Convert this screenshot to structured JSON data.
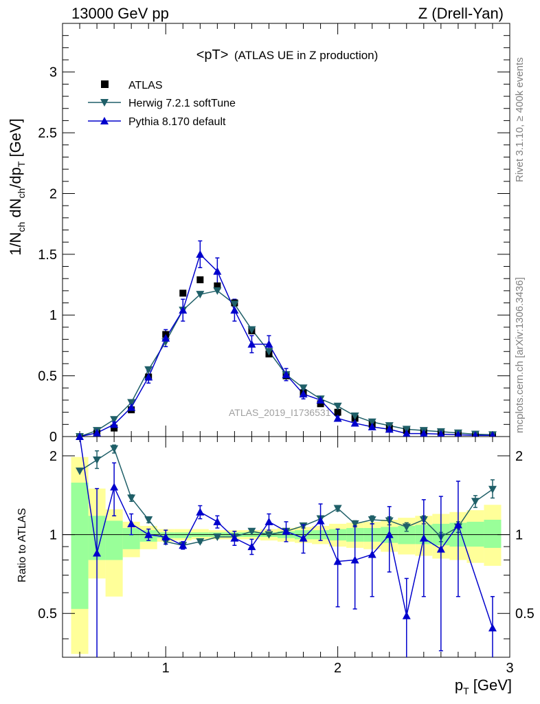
{
  "header": {
    "left": "13000 GeV pp",
    "right": "Z (Drell-Yan)"
  },
  "side_text": {
    "top": "Rivet 3.1.10, ≥ 400k events",
    "bottom": "mcplots.cern.ch [arXiv:1306.3436]"
  },
  "watermark": "ATLAS_2019_I1736531",
  "colors": {
    "atlas": "#000000",
    "herwig": "#1f5f68",
    "pythia": "#0000cc",
    "band_yellow": "#ffff99",
    "band_green": "#99ff99"
  },
  "chart_data": [
    {
      "type": "scatter",
      "title": "<pT> (ATLAS UE in Z production)",
      "title_main": "<pT>",
      "title_sub": "(ATLAS UE in Z production)",
      "ylabel": "1/N_ch dN_ch/dp_T [GeV]",
      "ylabel_parts": {
        "a": "1/N",
        "b": "ch",
        "c": " dN",
        "d": "ch",
        "e": "/dp",
        "f": "T",
        "g": " [GeV]"
      },
      "xlim": [
        0.4,
        3.0
      ],
      "ylim": [
        0,
        3.4
      ],
      "yticks": [
        {
          "v": 0,
          "label": "0"
        },
        {
          "v": 0.5,
          "label": "0.5"
        },
        {
          "v": 1,
          "label": "1"
        },
        {
          "v": 1.5,
          "label": "1.5"
        },
        {
          "v": 2,
          "label": "2"
        },
        {
          "v": 2.5,
          "label": "2.5"
        },
        {
          "v": 3,
          "label": "3"
        }
      ],
      "legend_position": "top-left",
      "x": [
        0.5,
        0.6,
        0.7,
        0.8,
        0.9,
        1.0,
        1.1,
        1.2,
        1.3,
        1.4,
        1.5,
        1.6,
        1.7,
        1.8,
        1.9,
        2.0,
        2.1,
        2.2,
        2.3,
        2.4,
        2.5,
        2.6,
        2.7,
        2.8,
        2.9
      ],
      "series": [
        {
          "name": "ATLAS",
          "marker": "square",
          "values": [
            0.0,
            0.03,
            0.07,
            0.22,
            0.49,
            0.84,
            1.18,
            1.29,
            1.24,
            1.1,
            0.87,
            0.68,
            0.5,
            0.36,
            0.27,
            0.2,
            0.15,
            0.1,
            0.07,
            0.05,
            0.04,
            0.03,
            0.02,
            0.015,
            0.01
          ]
        },
        {
          "name": "Herwig 7.2.1 softTune",
          "marker": "triangle-down",
          "values": [
            0.0,
            0.05,
            0.14,
            0.28,
            0.55,
            0.78,
            1.04,
            1.17,
            1.2,
            1.09,
            0.88,
            0.7,
            0.51,
            0.4,
            0.31,
            0.25,
            0.17,
            0.12,
            0.09,
            0.06,
            0.05,
            0.04,
            0.03,
            0.02,
            0.015
          ],
          "errors": [
            0,
            0,
            0,
            0,
            0,
            0,
            0,
            0,
            0,
            0,
            0,
            0,
            0,
            0,
            0,
            0,
            0,
            0,
            0,
            0,
            0,
            0,
            0,
            0,
            0
          ]
        },
        {
          "name": "Pythia 8.170 default",
          "marker": "triangle-up",
          "values": [
            0.0,
            0.03,
            0.1,
            0.24,
            0.49,
            0.81,
            1.04,
            1.5,
            1.36,
            1.04,
            0.76,
            0.76,
            0.51,
            0.35,
            0.3,
            0.15,
            0.11,
            0.08,
            0.06,
            0.025,
            0.025,
            0.02,
            0.015,
            0.01,
            0.01
          ],
          "errors": [
            0,
            0.01,
            0.02,
            0.03,
            0.05,
            0.07,
            0.09,
            0.11,
            0.11,
            0.09,
            0.07,
            0.07,
            0.05,
            0.04,
            0.03,
            0.02,
            0.02,
            0.015,
            0.01,
            0.01,
            0.01,
            0.01,
            0.01,
            0.005,
            0.005
          ]
        }
      ]
    },
    {
      "type": "scatter",
      "ylabel": "Ratio to ATLAS",
      "xlabel": "p_T [GeV]",
      "xlabel_parts": {
        "a": "p",
        "b": "T",
        "c": " [GeV]"
      },
      "xlim": [
        0.4,
        3.0
      ],
      "ylim": [
        0.34,
        2.37
      ],
      "xticks": [
        {
          "v": 1,
          "label": "1"
        },
        {
          "v": 2,
          "label": "2"
        },
        {
          "v": 3,
          "label": "3"
        }
      ],
      "yticks": [
        {
          "v": 0.5,
          "label": "0.5"
        },
        {
          "v": 1,
          "label": "1"
        },
        {
          "v": 2,
          "label": "2"
        }
      ],
      "bands": {
        "edges": [
          0.45,
          0.55,
          0.65,
          0.75,
          0.85,
          0.95,
          1.05,
          1.15,
          1.25,
          1.35,
          1.45,
          1.55,
          1.65,
          1.75,
          1.85,
          1.95,
          2.05,
          2.15,
          2.25,
          2.35,
          2.45,
          2.55,
          2.65,
          2.75,
          2.85,
          2.95
        ],
        "yellow": [
          [
            0.35,
            1.98
          ],
          [
            0.68,
            1.5
          ],
          [
            0.58,
            1.25
          ],
          [
            0.82,
            1.12
          ],
          [
            0.88,
            1.08
          ],
          [
            0.94,
            1.05
          ],
          [
            0.95,
            1.05
          ],
          [
            0.96,
            1.05
          ],
          [
            0.96,
            1.04
          ],
          [
            0.96,
            1.04
          ],
          [
            0.96,
            1.04
          ],
          [
            0.95,
            1.05
          ],
          [
            0.94,
            1.06
          ],
          [
            0.93,
            1.07
          ],
          [
            0.92,
            1.08
          ],
          [
            0.9,
            1.1
          ],
          [
            0.89,
            1.11
          ],
          [
            0.88,
            1.12
          ],
          [
            0.86,
            1.14
          ],
          [
            0.84,
            1.16
          ],
          [
            0.83,
            1.18
          ],
          [
            0.81,
            1.2
          ],
          [
            0.8,
            1.22
          ],
          [
            0.78,
            1.24
          ],
          [
            0.76,
            1.3
          ]
        ],
        "green": [
          [
            0.52,
            1.58
          ],
          [
            0.8,
            1.18
          ],
          [
            0.8,
            1.13
          ],
          [
            0.88,
            1.06
          ],
          [
            0.94,
            1.04
          ],
          [
            0.97,
            1.02
          ],
          [
            0.97,
            1.02
          ],
          [
            0.98,
            1.02
          ],
          [
            0.98,
            1.02
          ],
          [
            0.98,
            1.02
          ],
          [
            0.98,
            1.02
          ],
          [
            0.98,
            1.02
          ],
          [
            0.97,
            1.03
          ],
          [
            0.96,
            1.04
          ],
          [
            0.96,
            1.04
          ],
          [
            0.95,
            1.05
          ],
          [
            0.94,
            1.06
          ],
          [
            0.94,
            1.06
          ],
          [
            0.93,
            1.07
          ],
          [
            0.92,
            1.08
          ],
          [
            0.92,
            1.09
          ],
          [
            0.91,
            1.1
          ],
          [
            0.9,
            1.11
          ],
          [
            0.9,
            1.12
          ],
          [
            0.89,
            1.14
          ]
        ]
      },
      "x": [
        0.5,
        0.6,
        0.7,
        0.8,
        0.9,
        1.0,
        1.1,
        1.2,
        1.3,
        1.4,
        1.5,
        1.6,
        1.7,
        1.8,
        1.9,
        2.0,
        2.1,
        2.2,
        2.3,
        2.4,
        2.5,
        2.6,
        2.7,
        2.8,
        2.9
      ],
      "series": [
        {
          "name": "Herwig 7.2.1 softTune",
          "marker": "triangle-down",
          "values": [
            1.75,
            1.93,
            2.13,
            1.38,
            1.14,
            0.94,
            0.91,
            0.94,
            0.98,
            0.98,
            1.03,
            1.0,
            1.03,
            1.08,
            1.15,
            1.26,
            1.1,
            1.14,
            1.13,
            1.07,
            1.14,
            0.98,
            1.07,
            1.34,
            1.49
          ],
          "lo": [
            1.75,
            1.79,
            2.05,
            1.34,
            1.11,
            0.92,
            0.9,
            0.93,
            0.97,
            0.97,
            1.02,
            0.99,
            1.02,
            1.06,
            1.13,
            1.23,
            1.07,
            1.1,
            1.09,
            1.03,
            1.1,
            0.94,
            1.02,
            1.27,
            1.38
          ],
          "hi": [
            1.75,
            2.09,
            2.2,
            1.42,
            1.17,
            0.96,
            0.92,
            0.95,
            0.99,
            0.99,
            1.04,
            1.01,
            1.04,
            1.1,
            1.17,
            1.29,
            1.13,
            1.18,
            1.17,
            1.11,
            1.18,
            1.02,
            1.12,
            1.41,
            1.62
          ]
        },
        {
          "name": "Pythia 8.170 default",
          "marker": "triangle-up",
          "values": [
            2.37,
            0.85,
            1.52,
            1.1,
            1.0,
            0.98,
            0.91,
            1.22,
            1.12,
            0.97,
            0.9,
            1.12,
            1.03,
            0.97,
            1.13,
            0.79,
            0.8,
            0.84,
            1.0,
            0.49,
            0.97,
            0.88,
            1.09,
            null,
            0.44
          ],
          "lo": [
            2.37,
            0.3,
            1.18,
            1.0,
            0.95,
            0.92,
            0.88,
            1.15,
            1.06,
            0.91,
            0.84,
            1.04,
            0.94,
            0.85,
            0.95,
            0.53,
            0.52,
            0.58,
            0.72,
            0.3,
            0.58,
            0.36,
            0.58,
            null,
            0.3
          ],
          "hi": [
            2.37,
            1.5,
            1.88,
            1.2,
            1.05,
            1.04,
            0.94,
            1.29,
            1.18,
            1.03,
            0.96,
            1.2,
            1.12,
            1.09,
            1.31,
            1.05,
            1.08,
            1.1,
            1.28,
            0.68,
            1.36,
            1.4,
            1.6,
            null,
            0.58
          ]
        }
      ]
    }
  ]
}
